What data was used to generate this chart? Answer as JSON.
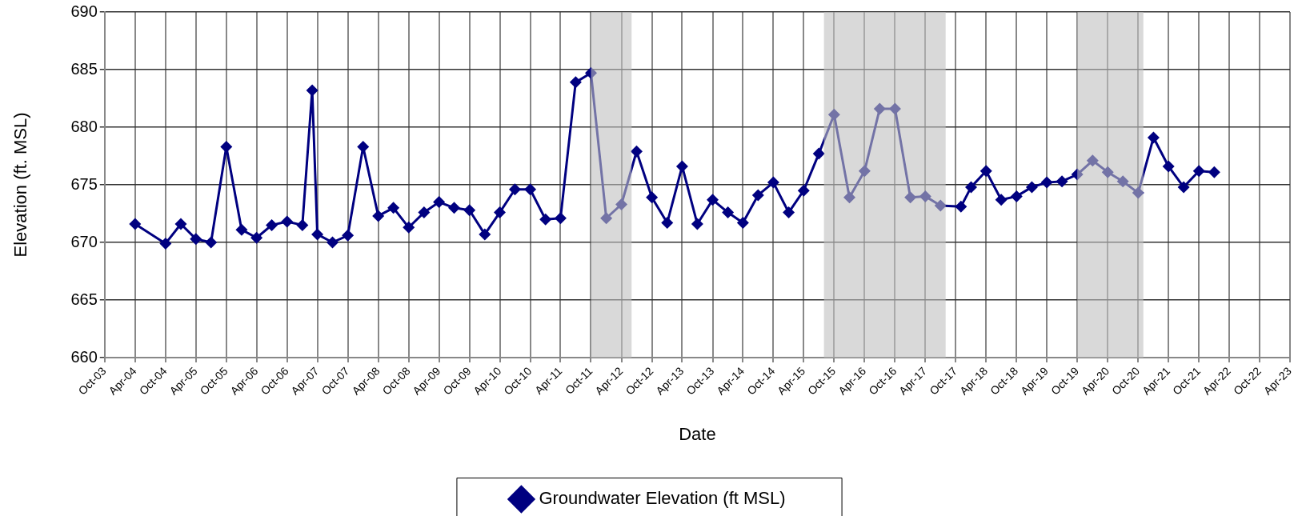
{
  "chart_data": {
    "type": "line",
    "xlabel": "Date",
    "ylabel": "Elevation (ft. MSL)",
    "x": [
      "2004-04",
      "2004-10",
      "2005-01",
      "2005-04",
      "2005-07",
      "2005-10",
      "2006-01",
      "2006-04",
      "2006-07",
      "2006-10",
      "2007-01",
      "2007-03",
      "2007-04",
      "2007-07",
      "2007-10",
      "2008-01",
      "2008-04",
      "2008-07",
      "2008-10",
      "2009-01",
      "2009-04",
      "2009-07",
      "2009-10",
      "2010-01",
      "2010-04",
      "2010-07",
      "2010-10",
      "2011-01",
      "2011-04",
      "2011-07",
      "2011-10",
      "2012-01",
      "2012-04",
      "2012-07",
      "2012-10",
      "2013-01",
      "2013-04",
      "2013-07",
      "2013-10",
      "2014-01",
      "2014-04",
      "2014-07",
      "2014-10",
      "2015-01",
      "2015-04",
      "2015-07",
      "2015-10",
      "2016-01",
      "2016-04",
      "2016-07",
      "2016-10",
      "2017-01",
      "2017-04",
      "2017-07",
      "2017-11",
      "2018-01",
      "2018-04",
      "2018-07",
      "2018-10",
      "2019-01",
      "2019-04",
      "2019-07",
      "2019-10",
      "2020-01",
      "2020-04",
      "2020-07",
      "2020-10",
      "2021-01",
      "2021-04",
      "2021-07",
      "2021-10",
      "2022-01"
    ],
    "series": [
      {
        "name": "Groundwater Elevation (ft MSL)",
        "color": "#000080",
        "values": [
          671.6,
          669.9,
          671.6,
          670.3,
          670.0,
          678.3,
          671.1,
          670.4,
          671.5,
          671.8,
          671.5,
          683.2,
          670.7,
          670.0,
          670.6,
          678.3,
          672.3,
          673.0,
          671.3,
          672.6,
          673.5,
          673.0,
          672.8,
          670.7,
          672.6,
          674.6,
          674.6,
          672.0,
          672.1,
          683.9,
          684.7,
          672.1,
          673.3,
          677.9,
          673.9,
          671.7,
          676.6,
          671.6,
          673.7,
          672.6,
          671.7,
          674.1,
          675.2,
          672.6,
          674.5,
          677.7,
          681.1,
          673.9,
          676.2,
          681.6,
          681.6,
          673.9,
          674.0,
          673.2,
          673.1,
          674.8,
          676.2,
          673.7,
          674.0,
          674.8,
          675.2,
          675.3,
          675.9,
          677.1,
          676.1,
          675.3,
          674.3,
          679.1,
          676.6,
          674.8,
          676.2,
          676.1
        ]
      }
    ],
    "xlim": [
      "2003-10",
      "2023-04"
    ],
    "xticks": [
      {
        "value": "2003-10",
        "label": "Oct-03"
      },
      {
        "value": "2004-04",
        "label": "Apr-04"
      },
      {
        "value": "2004-10",
        "label": "Oct-04"
      },
      {
        "value": "2005-04",
        "label": "Apr-05"
      },
      {
        "value": "2005-10",
        "label": "Oct-05"
      },
      {
        "value": "2006-04",
        "label": "Apr-06"
      },
      {
        "value": "2006-10",
        "label": "Oct-06"
      },
      {
        "value": "2007-04",
        "label": "Apr-07"
      },
      {
        "value": "2007-10",
        "label": "Oct-07"
      },
      {
        "value": "2008-04",
        "label": "Apr-08"
      },
      {
        "value": "2008-10",
        "label": "Oct-08"
      },
      {
        "value": "2009-04",
        "label": "Apr-09"
      },
      {
        "value": "2009-10",
        "label": "Oct-09"
      },
      {
        "value": "2010-04",
        "label": "Apr-10"
      },
      {
        "value": "2010-10",
        "label": "Oct-10"
      },
      {
        "value": "2011-04",
        "label": "Apr-11"
      },
      {
        "value": "2011-10",
        "label": "Oct-11"
      },
      {
        "value": "2012-04",
        "label": "Apr-12"
      },
      {
        "value": "2012-10",
        "label": "Oct-12"
      },
      {
        "value": "2013-04",
        "label": "Apr-13"
      },
      {
        "value": "2013-10",
        "label": "Oct-13"
      },
      {
        "value": "2014-04",
        "label": "Apr-14"
      },
      {
        "value": "2014-10",
        "label": "Oct-14"
      },
      {
        "value": "2015-04",
        "label": "Apr-15"
      },
      {
        "value": "2015-10",
        "label": "Oct-15"
      },
      {
        "value": "2016-04",
        "label": "Apr-16"
      },
      {
        "value": "2016-10",
        "label": "Oct-16"
      },
      {
        "value": "2017-04",
        "label": "Apr-17"
      },
      {
        "value": "2017-10",
        "label": "Oct-17"
      },
      {
        "value": "2018-04",
        "label": "Apr-18"
      },
      {
        "value": "2018-10",
        "label": "Oct-18"
      },
      {
        "value": "2019-04",
        "label": "Apr-19"
      },
      {
        "value": "2019-10",
        "label": "Oct-19"
      },
      {
        "value": "2020-04",
        "label": "Apr-20"
      },
      {
        "value": "2020-10",
        "label": "Oct-20"
      },
      {
        "value": "2021-04",
        "label": "Apr-21"
      },
      {
        "value": "2021-10",
        "label": "Oct-21"
      },
      {
        "value": "2022-04",
        "label": "Apr-22"
      },
      {
        "value": "2022-10",
        "label": "Oct-22"
      },
      {
        "value": "2023-04",
        "label": "Apr-23"
      }
    ],
    "ylim": [
      660,
      690
    ],
    "yticks": [
      660,
      665,
      670,
      675,
      680,
      685,
      690
    ],
    "bands": [
      {
        "axis": "x",
        "from": "2011-10",
        "to": "2012-06",
        "color": "#c0c0c0"
      },
      {
        "axis": "x",
        "from": "2015-08",
        "to": "2017-08",
        "color": "#c0c0c0"
      },
      {
        "axis": "x",
        "from": "2019-10",
        "to": "2020-11",
        "color": "#c0c0c0"
      }
    ],
    "grid": true,
    "legend": "bottom",
    "marker": "diamond",
    "line_style": "solid"
  }
}
